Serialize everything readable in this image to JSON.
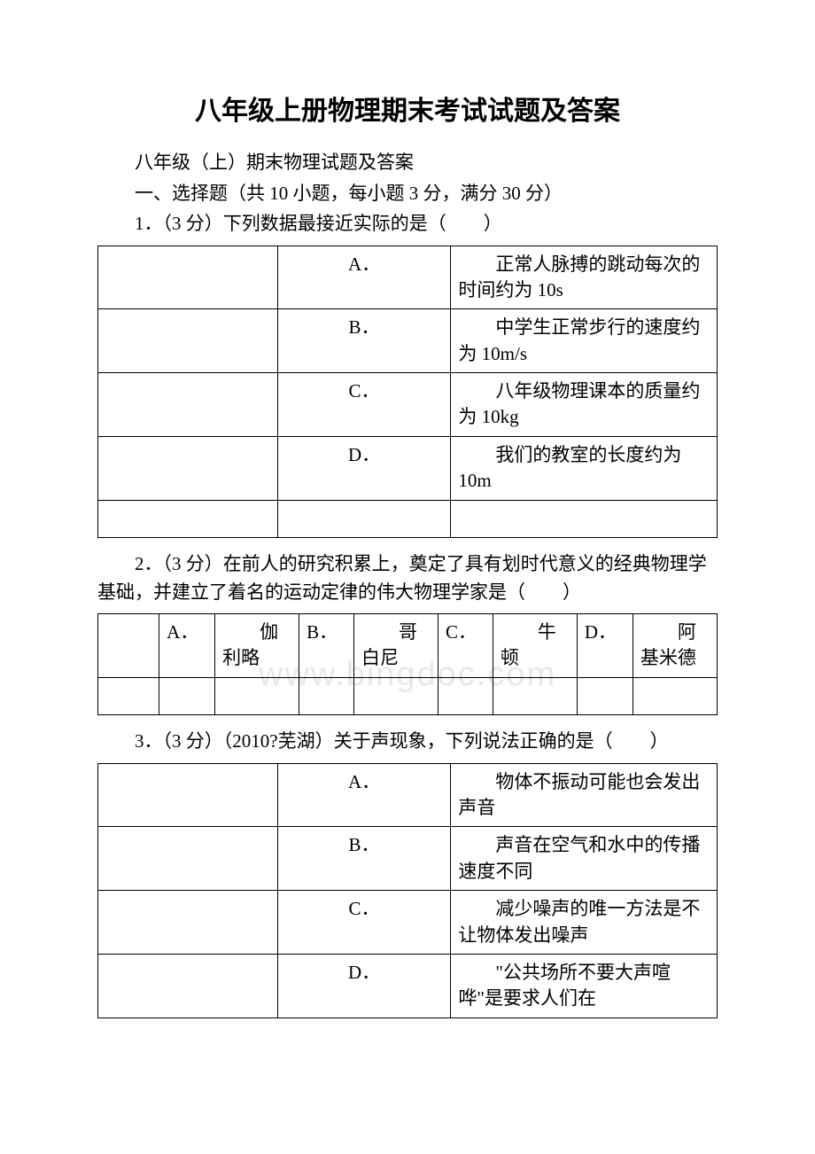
{
  "title": "八年级上册物理期末考试试题及答案",
  "subtitle": "八年级（上）期末物理试题及答案",
  "section1": "一、选择题（共 10 小题，每小题 3 分，满分 30 分）",
  "q1": "1．（3 分）下列数据最接近实际的是（　　）",
  "q1_table": {
    "rows": [
      {
        "label": "A．",
        "text": "　　正常人脉搏的跳动每次的时间约为 10s"
      },
      {
        "label": "B．",
        "text": "　　中学生正常步行的速度约为 10m/s"
      },
      {
        "label": "C．",
        "text": "　　八年级物理课本的质量约为 10kg"
      },
      {
        "label": "D．",
        "text": "　　我们的教室的长度约为 10m"
      }
    ]
  },
  "q2": "　　2．（3 分）在前人的研究积累上，奠定了具有划时代意义的经典物理学基础，并建立了着名的运动定律的伟大物理学家是（　　）",
  "q2_table": {
    "options": [
      {
        "label": "A．",
        "text": "　伽利略"
      },
      {
        "label": "B．",
        "text": "　哥白尼"
      },
      {
        "label": "C．",
        "text": "　牛顿"
      },
      {
        "label": "D．",
        "text": "　阿基米德"
      }
    ]
  },
  "q3": "　　3．（3 分）（2010?芜湖）关于声现象，下列说法正确的是（　　）",
  "q3_table": {
    "rows": [
      {
        "label": "A．",
        "text": "　　物体不振动可能也会发出声音"
      },
      {
        "label": "B．",
        "text": "　　声音在空气和水中的传播速度不同"
      },
      {
        "label": "C．",
        "text": "　　减少噪声的唯一方法是不让物体发出噪声"
      },
      {
        "label": "D．",
        "text": "　　\"公共场所不要大声喧哗\"是要求人们在"
      }
    ]
  },
  "watermark": "www.bingdoc.com",
  "colors": {
    "text": "#000000",
    "background": "#ffffff",
    "border": "#000000",
    "watermark": "#e8e8e8"
  },
  "typography": {
    "title_fontsize": 30,
    "body_fontsize": 21,
    "font_family": "SimSun"
  }
}
